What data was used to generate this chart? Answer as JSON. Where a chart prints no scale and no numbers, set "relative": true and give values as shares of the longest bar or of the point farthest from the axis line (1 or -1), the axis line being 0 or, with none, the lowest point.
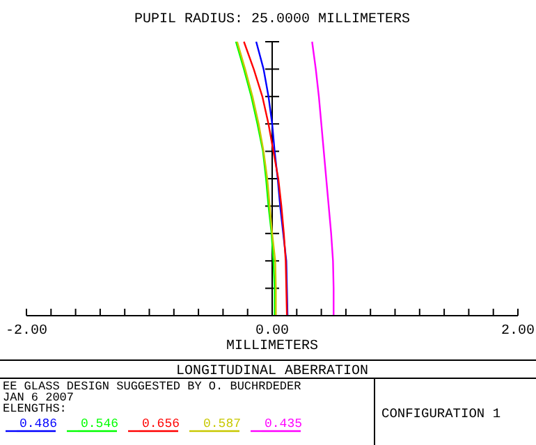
{
  "chart_data": {
    "type": "line",
    "title": "PUPIL RADIUS: 25.0000 MILLIMETERS",
    "xlabel": "MILLIMETERS",
    "relative": true,
    "legend": "bottom",
    "xlim": [
      -2,
      2
    ],
    "xticks": [
      {
        "value": -2,
        "label": "-2.00"
      },
      {
        "value": -1.8,
        "label": null
      },
      {
        "value": -1.6,
        "label": null
      },
      {
        "value": -1.4,
        "label": null
      },
      {
        "value": -1.2,
        "label": null
      },
      {
        "value": -1,
        "label": null
      },
      {
        "value": -0.8,
        "label": null
      },
      {
        "value": -0.6,
        "label": null
      },
      {
        "value": -0.4,
        "label": null
      },
      {
        "value": -0.2,
        "label": null
      },
      {
        "value": 0,
        "label": "0.00"
      },
      {
        "value": 0.2,
        "label": null
      },
      {
        "value": 0.4,
        "label": null
      },
      {
        "value": 0.6,
        "label": null
      },
      {
        "value": 0.8,
        "label": null
      },
      {
        "value": 1,
        "label": null
      },
      {
        "value": 1.2,
        "label": null
      },
      {
        "value": 1.4,
        "label": null
      },
      {
        "value": 1.6,
        "label": null
      },
      {
        "value": 1.8,
        "label": null
      },
      {
        "value": 2,
        "label": "2.00"
      }
    ],
    "series": [
      {
        "name": "0.486",
        "color": "#0000ff",
        "x": [
          0.125,
          0.12,
          0.115,
          0.09,
          0.065,
          0.045,
          0.02,
          0,
          -0.03,
          -0.07,
          -0.13
        ],
        "values": [
          0,
          0.1,
          0.2,
          0.3,
          0.4,
          0.5,
          0.6,
          0.7,
          0.8,
          0.9,
          1
        ]
      },
      {
        "name": "0.546",
        "color": "#00ff00",
        "x": [
          0.02,
          0.02,
          0.01,
          -0.005,
          -0.03,
          -0.05,
          -0.075,
          -0.12,
          -0.17,
          -0.23,
          -0.295
        ],
        "values": [
          0,
          0.1,
          0.2,
          0.3,
          0.4,
          0.5,
          0.6,
          0.7,
          0.8,
          0.9,
          1
        ]
      },
      {
        "name": "0.656",
        "color": "#ff0000",
        "x": [
          0.12,
          0.115,
          0.11,
          0.095,
          0.075,
          0.05,
          0.01,
          -0.03,
          -0.08,
          -0.15,
          -0.23
        ],
        "values": [
          0,
          0.1,
          0.2,
          0.3,
          0.4,
          0.5,
          0.6,
          0.7,
          0.8,
          0.9,
          1
        ]
      },
      {
        "name": "0.587",
        "color": "#c8c800",
        "x": [
          0.03,
          0.03,
          0.025,
          0,
          -0.02,
          -0.04,
          -0.07,
          -0.11,
          -0.16,
          -0.22,
          -0.285
        ],
        "values": [
          0,
          0.1,
          0.2,
          0.3,
          0.4,
          0.5,
          0.6,
          0.7,
          0.8,
          0.9,
          1
        ]
      },
      {
        "name": "0.435",
        "color": "#ff00ff",
        "x": [
          0.5,
          0.5,
          0.495,
          0.48,
          0.46,
          0.44,
          0.42,
          0.4,
          0.38,
          0.355,
          0.325
        ],
        "values": [
          0,
          0.1,
          0.2,
          0.3,
          0.4,
          0.5,
          0.6,
          0.7,
          0.8,
          0.9,
          1
        ]
      }
    ],
    "annotations": [
      "LONGITUDINAL ABERRATION",
      "EE GLASS DESIGN SUGGESTED BY O. BUCHRDEDER",
      "JAN 6 2007",
      "ELENGTHS:",
      "CONFIGURATION 1"
    ]
  }
}
